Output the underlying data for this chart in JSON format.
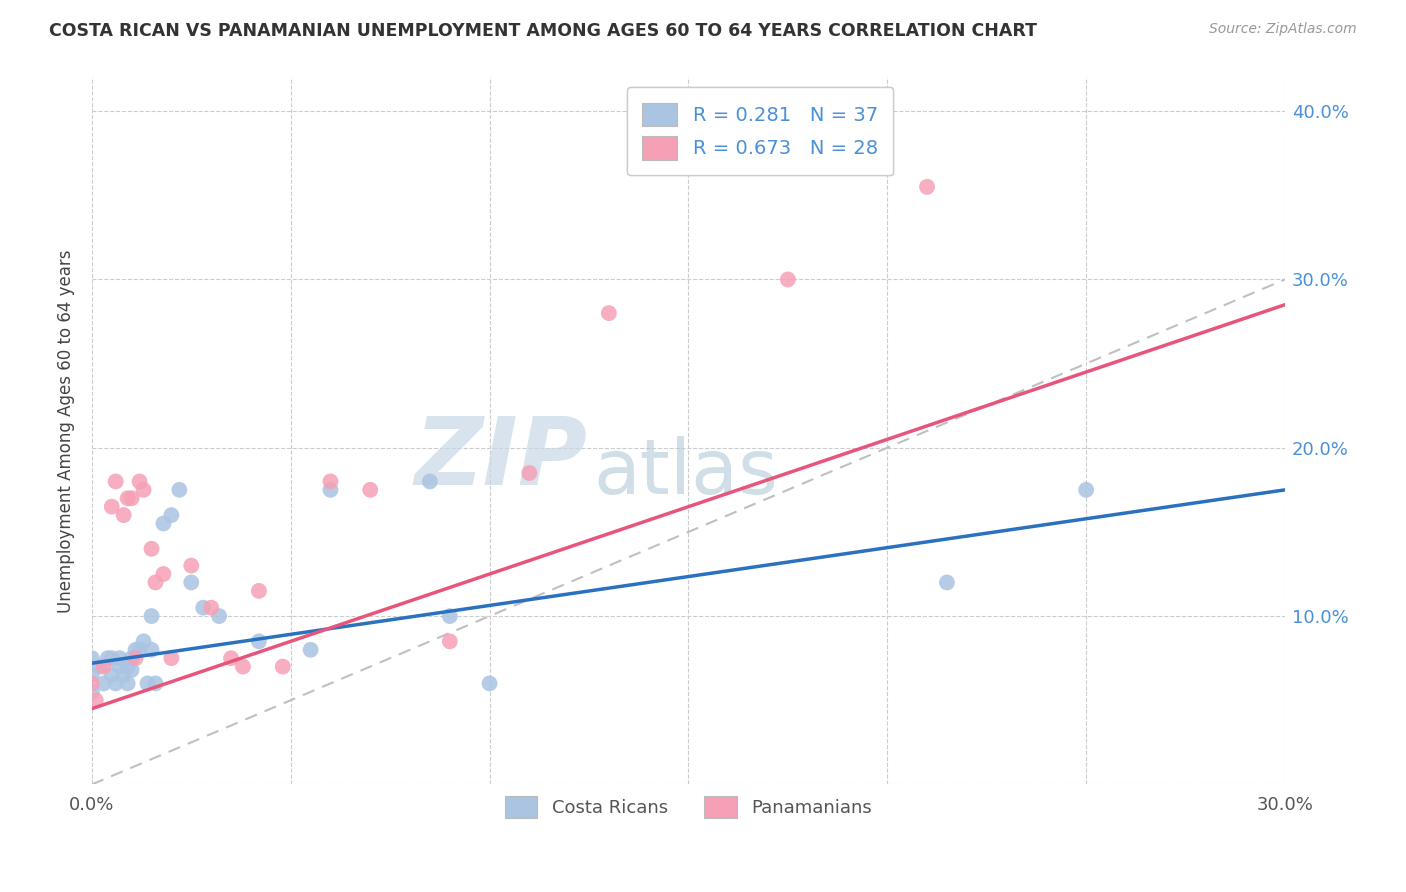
{
  "title": "COSTA RICAN VS PANAMANIAN UNEMPLOYMENT AMONG AGES 60 TO 64 YEARS CORRELATION CHART",
  "source": "Source: ZipAtlas.com",
  "ylabel": "Unemployment Among Ages 60 to 64 years",
  "xlim": [
    0.0,
    0.3
  ],
  "ylim": [
    0.0,
    0.42
  ],
  "x_ticks": [
    0.0,
    0.05,
    0.1,
    0.15,
    0.2,
    0.25,
    0.3
  ],
  "y_ticks_right": [
    0.0,
    0.1,
    0.2,
    0.3,
    0.4
  ],
  "costa_rica_color": "#aac4e2",
  "panama_color": "#f5a0b5",
  "costa_rica_line_color": "#2a72bf",
  "panama_line_color": "#e8557a",
  "diagonal_color": "#c0c0c0",
  "R_cr": 0.281,
  "N_cr": 37,
  "R_pa": 0.673,
  "N_pa": 28,
  "watermark_zip": "ZIP",
  "watermark_atlas": "atlas",
  "watermark_color_zip": "#c8d8e8",
  "watermark_color_atlas": "#b0c8d8",
  "cr_line_x0": 0.0,
  "cr_line_y0": 0.072,
  "cr_line_x1": 0.3,
  "cr_line_y1": 0.175,
  "pa_line_x0": 0.0,
  "pa_line_y0": 0.045,
  "pa_line_x1": 0.3,
  "pa_line_y1": 0.285,
  "costa_ricans_scatter_x": [
    0.0,
    0.0,
    0.0,
    0.002,
    0.003,
    0.004,
    0.005,
    0.005,
    0.006,
    0.007,
    0.007,
    0.008,
    0.009,
    0.009,
    0.01,
    0.01,
    0.011,
    0.012,
    0.013,
    0.014,
    0.015,
    0.015,
    0.016,
    0.018,
    0.02,
    0.022,
    0.025,
    0.028,
    0.032,
    0.042,
    0.055,
    0.06,
    0.085,
    0.09,
    0.1,
    0.215,
    0.25
  ],
  "costa_ricans_scatter_y": [
    0.055,
    0.065,
    0.075,
    0.07,
    0.06,
    0.075,
    0.065,
    0.075,
    0.06,
    0.07,
    0.075,
    0.065,
    0.06,
    0.07,
    0.068,
    0.075,
    0.08,
    0.08,
    0.085,
    0.06,
    0.08,
    0.1,
    0.06,
    0.155,
    0.16,
    0.175,
    0.12,
    0.105,
    0.1,
    0.085,
    0.08,
    0.175,
    0.18,
    0.1,
    0.06,
    0.12,
    0.175
  ],
  "panamanians_scatter_x": [
    0.0,
    0.001,
    0.003,
    0.005,
    0.006,
    0.008,
    0.009,
    0.01,
    0.011,
    0.012,
    0.013,
    0.015,
    0.016,
    0.018,
    0.02,
    0.025,
    0.03,
    0.035,
    0.038,
    0.042,
    0.048,
    0.06,
    0.07,
    0.09,
    0.11,
    0.13,
    0.175,
    0.21
  ],
  "panamanians_scatter_y": [
    0.06,
    0.05,
    0.07,
    0.165,
    0.18,
    0.16,
    0.17,
    0.17,
    0.075,
    0.18,
    0.175,
    0.14,
    0.12,
    0.125,
    0.075,
    0.13,
    0.105,
    0.075,
    0.07,
    0.115,
    0.07,
    0.18,
    0.175,
    0.085,
    0.185,
    0.28,
    0.3,
    0.355
  ]
}
